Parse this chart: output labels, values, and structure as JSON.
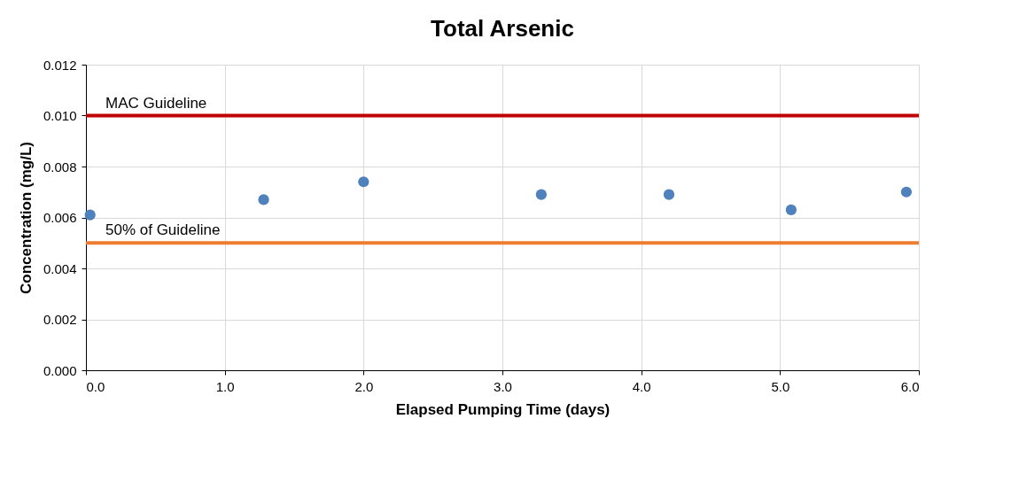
{
  "chart_data": {
    "type": "scatter",
    "title": "Total Arsenic",
    "xlabel": "Elapsed Pumping Time (days)",
    "ylabel": "Concentration (mg/L)",
    "x": [
      0.03,
      1.28,
      2.0,
      3.28,
      4.2,
      5.08,
      5.91
    ],
    "series": [
      {
        "color": "#4f81bd",
        "values": [
          0.0061,
          0.0067,
          0.0074,
          0.0069,
          0.0069,
          0.0063,
          0.007
        ]
      }
    ],
    "xlim": [
      0,
      6
    ],
    "ylim": [
      0,
      0.012
    ],
    "xticks": [
      {
        "value": 0,
        "label": "0.0"
      },
      {
        "value": 1,
        "label": "1.0"
      },
      {
        "value": 2,
        "label": "2.0"
      },
      {
        "value": 3,
        "label": "3.0"
      },
      {
        "value": 4,
        "label": "4.0"
      },
      {
        "value": 5,
        "label": "5.0"
      },
      {
        "value": 6,
        "label": "6.0"
      }
    ],
    "yticks": [
      {
        "value": 0,
        "label": "0.000"
      },
      {
        "value": 0.002,
        "label": "0.002"
      },
      {
        "value": 0.004,
        "label": "0.004"
      },
      {
        "value": 0.006,
        "label": "0.006"
      },
      {
        "value": 0.008,
        "label": "0.008"
      },
      {
        "value": 0.01,
        "label": "0.010"
      },
      {
        "value": 0.012,
        "label": "0.012"
      }
    ],
    "ref_lines": [
      {
        "axis": "y",
        "value": 0.01,
        "label": "MAC Guideline",
        "color": "#c00000"
      },
      {
        "axis": "y",
        "value": 0.005,
        "label": "50% of Guideline",
        "color": "#ed7d31"
      }
    ],
    "grid": true,
    "marker": "circle"
  }
}
